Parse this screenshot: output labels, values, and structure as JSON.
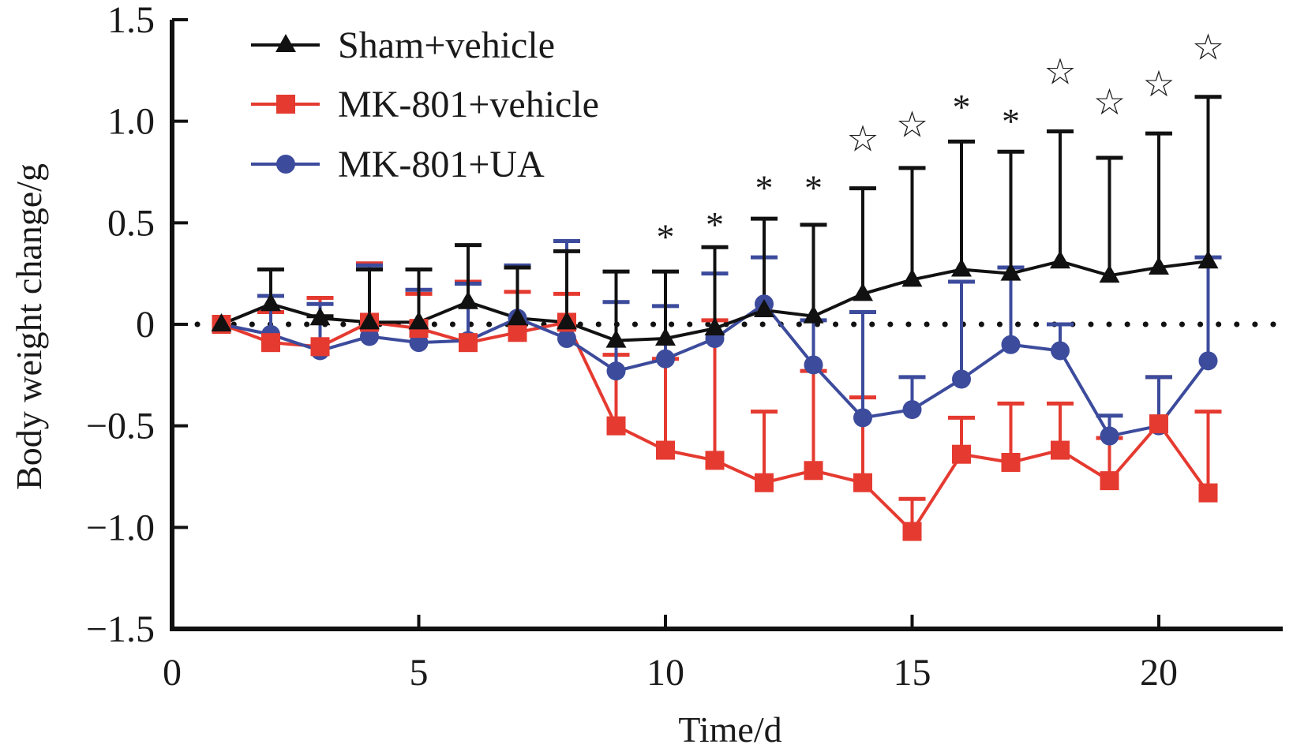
{
  "chart_data": {
    "type": "line",
    "title": "",
    "xlabel": "Time/d",
    "ylabel": "Body weight change/g",
    "xlim": [
      0,
      22
    ],
    "ylim": [
      -1.5,
      1.5
    ],
    "xticks": [
      0,
      5,
      10,
      15,
      20
    ],
    "yticks": [
      1.5,
      1.0,
      0.5,
      0,
      -0.5,
      -1.0,
      -1.5
    ],
    "ytick_labels": [
      "1.5",
      "1.0",
      "0.5",
      "0",
      "−0.5",
      "−1.0",
      "−1.5"
    ],
    "xtick_labels": [
      "0",
      "5",
      "10",
      "15",
      "20"
    ],
    "grid": false,
    "reference_line": {
      "y": 0,
      "style": "dotted"
    },
    "legend_position": "top-left",
    "x": [
      1,
      2,
      3,
      4,
      5,
      6,
      7,
      8,
      9,
      10,
      11,
      12,
      13,
      14,
      15,
      16,
      17,
      18,
      19,
      20,
      21
    ],
    "series": [
      {
        "name": "Sham+vehicle",
        "color": "#111111",
        "marker": "triangle",
        "values": [
          0,
          0.1,
          0.03,
          0.01,
          0.01,
          0.11,
          0.03,
          0.01,
          -0.08,
          -0.07,
          -0.02,
          0.07,
          0.04,
          0.15,
          0.22,
          0.27,
          0.25,
          0.31,
          0.24,
          0.28,
          0.31
        ],
        "error_upper": [
          0,
          0.27,
          0.04,
          0.27,
          0.27,
          0.39,
          0.28,
          0.36,
          0.26,
          0.26,
          0.38,
          0.52,
          0.49,
          0.67,
          0.77,
          0.9,
          0.85,
          0.95,
          0.82,
          0.94,
          1.12
        ]
      },
      {
        "name": "MK-801+vehicle",
        "color": "#e53a30",
        "marker": "square",
        "values": [
          0,
          -0.09,
          -0.11,
          0.01,
          -0.02,
          -0.09,
          -0.04,
          0.01,
          -0.5,
          -0.62,
          -0.67,
          -0.78,
          -0.72,
          -0.78,
          -1.02,
          -0.64,
          -0.68,
          -0.62,
          -0.77,
          -0.49,
          -0.83
        ],
        "error_upper": [
          0,
          0.06,
          0.13,
          0.3,
          0.15,
          0.21,
          0.16,
          0.15,
          -0.15,
          -0.17,
          0.02,
          -0.43,
          -0.23,
          -0.36,
          -0.86,
          -0.46,
          -0.39,
          -0.39,
          -0.56,
          -0.26,
          -0.43
        ]
      },
      {
        "name": "MK-801+UA",
        "color": "#3c4b9c",
        "marker": "circle",
        "values": [
          0,
          -0.05,
          -0.13,
          -0.06,
          -0.09,
          -0.08,
          0.03,
          -0.07,
          -0.23,
          -0.17,
          -0.07,
          0.1,
          -0.2,
          -0.46,
          -0.42,
          -0.27,
          -0.1,
          -0.13,
          -0.55,
          -0.5,
          -0.18
        ],
        "error_upper": [
          0,
          0.14,
          0.1,
          0.29,
          0.17,
          0.2,
          0.29,
          0.41,
          0.11,
          0.09,
          0.25,
          0.33,
          0.02,
          0.06,
          -0.26,
          0.21,
          0.28,
          0.0,
          -0.45,
          -0.26,
          0.33
        ]
      }
    ],
    "annotations": [
      {
        "x": 10,
        "symbol": "*",
        "y": 0.48
      },
      {
        "x": 11,
        "symbol": "*",
        "y": 0.54
      },
      {
        "x": 12,
        "symbol": "*",
        "y": 0.72
      },
      {
        "x": 13,
        "symbol": "*",
        "y": 0.72
      },
      {
        "x": 14,
        "symbol": "☆",
        "y": 0.9
      },
      {
        "x": 15,
        "symbol": "☆",
        "y": 0.97
      },
      {
        "x": 16,
        "symbol": "*",
        "y": 1.12
      },
      {
        "x": 17,
        "symbol": "*",
        "y": 1.05
      },
      {
        "x": 18,
        "symbol": "☆",
        "y": 1.23
      },
      {
        "x": 19,
        "symbol": "☆",
        "y": 1.08
      },
      {
        "x": 20,
        "symbol": "☆",
        "y": 1.17
      },
      {
        "x": 21,
        "symbol": "☆",
        "y": 1.35
      }
    ]
  }
}
